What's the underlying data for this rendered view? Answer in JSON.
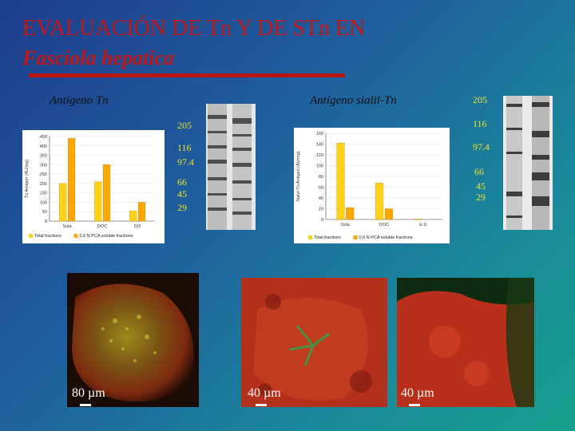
{
  "title": {
    "line1": "EVALUACIÓN DE Tn Y DE STn EN",
    "line2": "Fasciola hepatica"
  },
  "labels": {
    "left": "Antígeno Tn",
    "right": "Antígeno sialil-Tn"
  },
  "markers_left": [
    "205",
    "116",
    "97.4",
    "66",
    "45",
    "29"
  ],
  "markers_right": [
    "205",
    "116",
    "97.4",
    "66",
    "45",
    "29"
  ],
  "scale_bars": [
    "80 µm",
    "40 µm",
    "40 µm"
  ],
  "colors": {
    "title": "#c01818",
    "series_total": "#ffd21a",
    "series_pca": "#ffa600",
    "markers": "#e8e030"
  },
  "chart_data": [
    {
      "type": "bar",
      "ylabel": "Tn Antigen (AU/mg)",
      "categories": [
        "Sola",
        "DOC",
        "D/3"
      ],
      "ylim": [
        0,
        450
      ],
      "yticks": [
        0,
        50,
        100,
        150,
        200,
        250,
        300,
        350,
        400,
        450
      ],
      "series": [
        {
          "name": "Total fractions",
          "values": [
            200,
            210,
            55
          ]
        },
        {
          "name": "0,6 N PCA soluble fractions",
          "values": [
            440,
            300,
            100
          ]
        }
      ],
      "legend": "bottom"
    },
    {
      "type": "bar",
      "ylabel": "Sialyl-Tn Antigen (AU/mg)",
      "categories": [
        "Sola",
        "DOC",
        "E.S"
      ],
      "ylim": [
        0,
        160
      ],
      "yticks": [
        0,
        20,
        40,
        60,
        80,
        100,
        120,
        140,
        160
      ],
      "series": [
        {
          "name": "Total fractions",
          "values": [
            142,
            68,
            1
          ]
        },
        {
          "name": "0,6 N PCA soluble fractions",
          "values": [
            22,
            20,
            0
          ]
        }
      ],
      "legend": "bottom"
    }
  ]
}
